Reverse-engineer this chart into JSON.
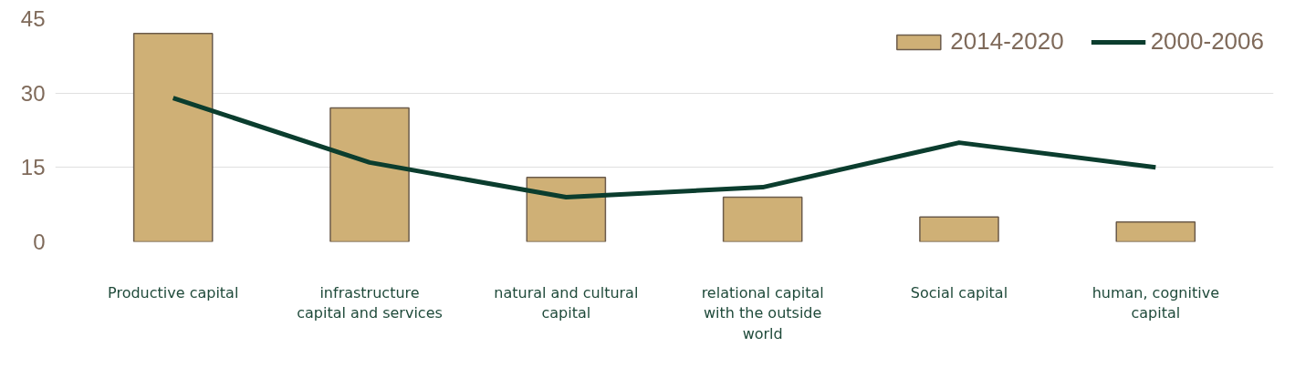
{
  "chart_data": {
    "type": "bar",
    "categories": [
      "Productive capital",
      "infrastructure capital and services",
      "natural and cultural capital",
      "relational capital with the outside world",
      "Social capital",
      "human, cognitive capital"
    ],
    "series": [
      {
        "name": "2014-2020",
        "color": "#cfb076",
        "values": [
          42,
          27,
          13,
          9,
          5,
          4
        ]
      },
      {
        "name": "2000-2006",
        "type": "line",
        "color": "#0b3d2e",
        "values": [
          29,
          16,
          9,
          11,
          20,
          15
        ]
      }
    ],
    "ylim": [
      0,
      45
    ],
    "yticks": [
      0,
      15,
      30,
      45
    ],
    "grid": "y",
    "legend": "top right"
  }
}
